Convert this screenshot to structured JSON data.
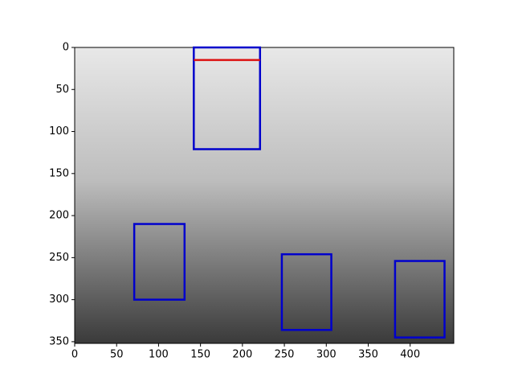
{
  "chart_data": {
    "type": "image",
    "xlim": [
      0,
      452
    ],
    "ylim": [
      352,
      0
    ],
    "xticks": [
      0,
      50,
      100,
      150,
      200,
      250,
      300,
      350,
      400
    ],
    "yticks": [
      0,
      50,
      100,
      150,
      200,
      250,
      300,
      350
    ],
    "boxes": [
      {
        "color": "#0000cc",
        "x": [
          142,
          221
        ],
        "y": [
          0,
          121
        ]
      },
      {
        "color": "#0000cc",
        "x": [
          71,
          131
        ],
        "y": [
          210,
          300
        ]
      },
      {
        "color": "#0000cc",
        "x": [
          247,
          306
        ],
        "y": [
          246,
          336
        ]
      },
      {
        "color": "#0000cc",
        "x": [
          382,
          441
        ],
        "y": [
          254,
          345
        ]
      }
    ],
    "lines": [
      {
        "color": "#dd1111",
        "x": [
          142,
          221
        ],
        "y": [
          15,
          15
        ]
      }
    ]
  }
}
